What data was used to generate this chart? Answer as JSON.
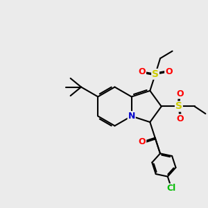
{
  "bg_color": "#ebebeb",
  "bond_color": "#000000",
  "atom_colors": {
    "N": "#0000cc",
    "O": "#ff0000",
    "S": "#cccc00",
    "Cl": "#00bb00",
    "C": "#000000"
  },
  "bond_lw": 1.5,
  "figsize": [
    3.0,
    3.0
  ],
  "dpi": 100
}
